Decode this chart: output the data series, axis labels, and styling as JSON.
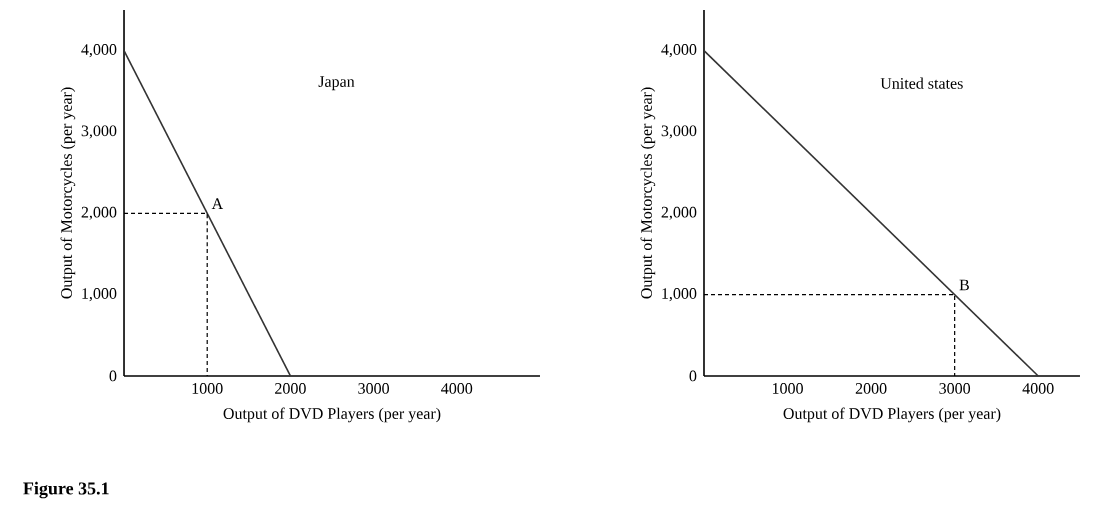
{
  "chart_data": [
    {
      "type": "line",
      "xlabel": "Output of DVD Players (per year)",
      "ylabel": "Output of Motorcycles (per year)",
      "xlim": [
        0,
        5000
      ],
      "ylim": [
        0,
        4500
      ],
      "xticks": [
        1000,
        2000,
        3000,
        4000
      ],
      "yticks": [
        0,
        {
          "value": 1000,
          "label": "1,000"
        },
        {
          "value": 2000,
          "label": "2,000"
        },
        {
          "value": 3000,
          "label": "3,000"
        },
        {
          "value": 4000,
          "label": "4,000"
        }
      ],
      "grid": false,
      "marker": "none",
      "series": [
        {
          "color": "#333333",
          "line_style": "solid",
          "x": [
            0,
            2000
          ],
          "values": [
            4000,
            0
          ]
        },
        {
          "color": "#000000",
          "line_style": "dotted",
          "x": [
            0,
            1000,
            1000
          ],
          "values": [
            2000,
            2000,
            0
          ]
        }
      ],
      "annotations": [
        {
          "text": "A",
          "x": 1000,
          "y": 2000
        },
        "Japan",
        "Figure 35.1"
      ]
    },
    {
      "type": "line",
      "xlabel": "Output of DVD Players (per year)",
      "ylabel": "Output of Motorcycles (per year)",
      "xlim": [
        0,
        4500
      ],
      "ylim": [
        0,
        4500
      ],
      "xticks": [
        1000,
        2000,
        3000,
        4000
      ],
      "yticks": [
        0,
        {
          "value": 1000,
          "label": "1,000"
        },
        {
          "value": 2000,
          "label": "2,000"
        },
        {
          "value": 3000,
          "label": "3,000"
        },
        {
          "value": 4000,
          "label": "4,000"
        }
      ],
      "grid": false,
      "marker": "none",
      "series": [
        {
          "color": "#333333",
          "line_style": "solid",
          "x": [
            0,
            4000
          ],
          "values": [
            4000,
            0
          ]
        },
        {
          "color": "#000000",
          "line_style": "dotted",
          "x": [
            0,
            3000,
            3000
          ],
          "values": [
            1000,
            1000,
            0
          ]
        }
      ],
      "annotations": [
        {
          "text": "B",
          "x": 3000,
          "y": 1000
        },
        "United states"
      ]
    }
  ]
}
